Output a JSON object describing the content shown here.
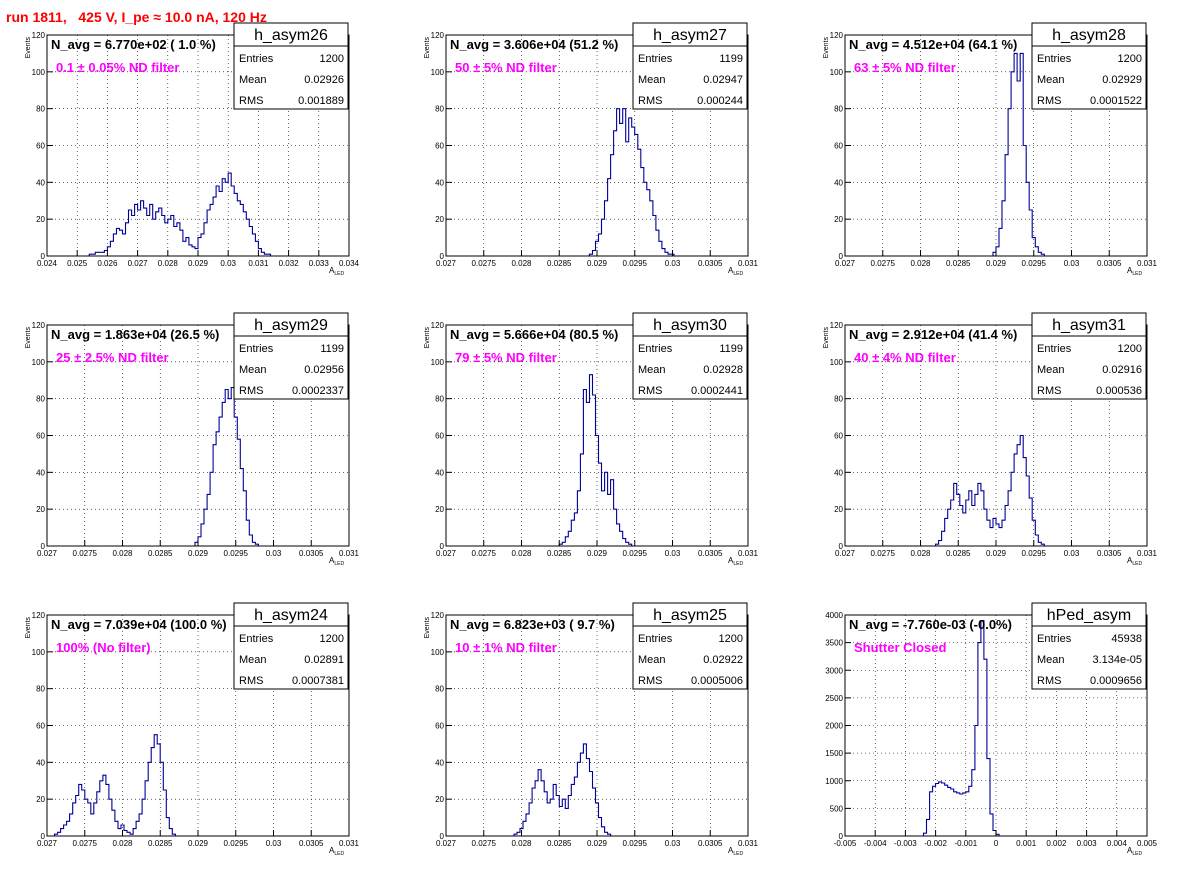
{
  "canvas_title": "run 1811,   425 V, I_pe ≈ 10.0 nA, 120 Hz",
  "chart_data": [
    {
      "type": "histogram",
      "name": "h_asym26",
      "navg": "N_avg = 6.770e+02 ( 1.0 %)",
      "filter": "0.1 ± 0.05% ND filter",
      "entries": "1200",
      "mean": "0.02926",
      "rms": "0.001889",
      "xlabel": "A",
      "xlabel_sub": "LED",
      "ylabel": "Events",
      "xlim": [
        0.024,
        0.034
      ],
      "ylim": [
        0,
        120
      ],
      "xticks": [
        0.024,
        0.025,
        0.026,
        0.027,
        0.028,
        0.029,
        0.03,
        0.031,
        0.032,
        0.033,
        0.034
      ],
      "xtick_labels": [
        "0.024",
        "0.025",
        "0.026",
        "0.027",
        "0.028",
        "0.029",
        "0.03",
        "0.031",
        "0.032",
        "0.033",
        "0.034"
      ],
      "yticks": [
        0,
        20,
        40,
        60,
        80,
        100,
        120
      ],
      "ytick_labels": [
        "0",
        "20",
        "40",
        "60",
        "80",
        "100",
        "120"
      ],
      "bin_start": 0.0254,
      "bin_width": 0.0001,
      "counts": [
        1,
        1,
        2,
        2,
        2,
        3,
        5,
        8,
        12,
        15,
        14,
        12,
        18,
        25,
        22,
        28,
        25,
        30,
        26,
        22,
        28,
        20,
        24,
        26,
        22,
        18,
        20,
        22,
        16,
        18,
        14,
        8,
        10,
        6,
        5,
        4,
        10,
        12,
        18,
        25,
        28,
        32,
        38,
        35,
        42,
        40,
        45,
        38,
        34,
        30,
        28,
        24,
        20,
        16,
        12,
        8,
        4,
        2,
        1,
        1
      ]
    },
    {
      "type": "histogram",
      "name": "h_asym27",
      "navg": "N_avg = 3.606e+04 (51.2 %)",
      "filter": "50 ± 5% ND filter",
      "entries": "1199",
      "mean": "0.02947",
      "rms": "0.000244",
      "xlabel": "A",
      "xlabel_sub": "LED",
      "ylabel": "Events",
      "xlim": [
        0.027,
        0.031
      ],
      "ylim": [
        0,
        120
      ],
      "xticks": [
        0.027,
        0.0275,
        0.028,
        0.0285,
        0.029,
        0.0295,
        0.03,
        0.0305,
        0.031
      ],
      "xtick_labels": [
        "0.027",
        "0.0275",
        "0.028",
        "0.0285",
        "0.029",
        "0.0295",
        "0.03",
        "0.0305",
        "0.031"
      ],
      "yticks": [
        0,
        20,
        40,
        60,
        80,
        100,
        120
      ],
      "ytick_labels": [
        "0",
        "20",
        "40",
        "60",
        "80",
        "100",
        "120"
      ],
      "bin_start": 0.0289,
      "bin_width": 4e-05,
      "counts": [
        1,
        3,
        8,
        12,
        20,
        30,
        42,
        55,
        68,
        80,
        72,
        80,
        62,
        75,
        70,
        66,
        58,
        48,
        40,
        36,
        30,
        22,
        14,
        8,
        4,
        2,
        1,
        1
      ]
    },
    {
      "type": "histogram",
      "name": "h_asym28",
      "navg": "N_avg = 4.512e+04 (64.1 %)",
      "filter": "63 ± 5% ND filter",
      "entries": "1200",
      "mean": "0.02929",
      "rms": "0.0001522",
      "xlabel": "A",
      "xlabel_sub": "LED",
      "ylabel": "Events",
      "xlim": [
        0.027,
        0.031
      ],
      "ylim": [
        0,
        120
      ],
      "xticks": [
        0.027,
        0.0275,
        0.028,
        0.0285,
        0.029,
        0.0295,
        0.03,
        0.0305,
        0.031
      ],
      "xtick_labels": [
        "0.027",
        "0.0275",
        "0.028",
        "0.0285",
        "0.029",
        "0.0295",
        "0.03",
        "0.0305",
        "0.031"
      ],
      "yticks": [
        0,
        20,
        40,
        60,
        80,
        100,
        120
      ],
      "ytick_labels": [
        "0",
        "20",
        "40",
        "60",
        "80",
        "100",
        "120"
      ],
      "bin_start": 0.02896,
      "bin_width": 4e-05,
      "counts": [
        2,
        5,
        15,
        30,
        55,
        80,
        100,
        110,
        95,
        110,
        60,
        40,
        25,
        10,
        5,
        2,
        1
      ]
    },
    {
      "type": "histogram",
      "name": "h_asym29",
      "navg": "N_avg = 1.863e+04 (26.5 %)",
      "filter": "25 ± 2.5% ND filter",
      "entries": "1199",
      "mean": "0.02956",
      "rms": "0.0002337",
      "xlabel": "A",
      "xlabel_sub": "LED",
      "ylabel": "Events",
      "xlim": [
        0.027,
        0.031
      ],
      "ylim": [
        0,
        120
      ],
      "xticks": [
        0.027,
        0.0275,
        0.028,
        0.0285,
        0.029,
        0.0295,
        0.03,
        0.0305,
        0.031
      ],
      "xtick_labels": [
        "0.027",
        "0.0275",
        "0.028",
        "0.0285",
        "0.029",
        "0.0295",
        "0.03",
        "0.0305",
        "0.031"
      ],
      "yticks": [
        0,
        20,
        40,
        60,
        80,
        100,
        120
      ],
      "ytick_labels": [
        "0",
        "20",
        "40",
        "60",
        "80",
        "100",
        "120"
      ],
      "bin_start": 0.02896,
      "bin_width": 4e-05,
      "counts": [
        2,
        5,
        12,
        20,
        28,
        40,
        55,
        62,
        70,
        78,
        85,
        80,
        86,
        70,
        58,
        42,
        30,
        14,
        6,
        2,
        1
      ]
    },
    {
      "type": "histogram",
      "name": "h_asym30",
      "navg": "N_avg = 5.666e+04 (80.5 %)",
      "filter": "79 ± 5% ND filter",
      "entries": "1199",
      "mean": "0.02928",
      "rms": "0.0002441",
      "xlabel": "A",
      "xlabel_sub": "LED",
      "ylabel": "Events",
      "xlim": [
        0.027,
        0.031
      ],
      "ylim": [
        0,
        120
      ],
      "xticks": [
        0.027,
        0.0275,
        0.028,
        0.0285,
        0.029,
        0.0295,
        0.03,
        0.0305,
        0.031
      ],
      "xtick_labels": [
        "0.027",
        "0.0275",
        "0.028",
        "0.0285",
        "0.029",
        "0.0295",
        "0.03",
        "0.0305",
        "0.031"
      ],
      "yticks": [
        0,
        20,
        40,
        60,
        80,
        100,
        120
      ],
      "ytick_labels": [
        "0",
        "20",
        "40",
        "60",
        "80",
        "100",
        "120"
      ],
      "bin_start": 0.0285,
      "bin_width": 4e-05,
      "counts": [
        1,
        2,
        5,
        8,
        14,
        18,
        30,
        50,
        85,
        78,
        93,
        82,
        60,
        45,
        30,
        40,
        28,
        36,
        20,
        12,
        8,
        4,
        2,
        1
      ]
    },
    {
      "type": "histogram",
      "name": "h_asym31",
      "navg": "N_avg = 2.912e+04 (41.4 %)",
      "filter": "40 ± 4% ND filter",
      "entries": "1200",
      "mean": "0.02916",
      "rms": "0.000536",
      "xlabel": "A",
      "xlabel_sub": "LED",
      "ylabel": "Events",
      "xlim": [
        0.027,
        0.031
      ],
      "ylim": [
        0,
        120
      ],
      "xticks": [
        0.027,
        0.0275,
        0.028,
        0.0285,
        0.029,
        0.0295,
        0.03,
        0.0305,
        0.031
      ],
      "xtick_labels": [
        "0.027",
        "0.0275",
        "0.028",
        "0.0285",
        "0.029",
        "0.0295",
        "0.03",
        "0.0305",
        "0.031"
      ],
      "yticks": [
        0,
        20,
        40,
        60,
        80,
        100,
        120
      ],
      "ytick_labels": [
        "0",
        "20",
        "40",
        "60",
        "80",
        "100",
        "120"
      ],
      "bin_start": 0.0282,
      "bin_width": 4e-05,
      "counts": [
        1,
        3,
        8,
        15,
        20,
        25,
        34,
        28,
        22,
        18,
        25,
        30,
        22,
        28,
        34,
        30,
        20,
        14,
        10,
        15,
        12,
        10,
        14,
        22,
        30,
        40,
        50,
        55,
        60,
        48,
        38,
        26,
        14,
        6,
        2,
        1
      ]
    },
    {
      "type": "histogram",
      "name": "h_asym24",
      "navg": "N_avg = 7.039e+04 (100.0 %)",
      "filter": "100% (No filter)",
      "entries": "1200",
      "mean": "0.02891",
      "rms": "0.0007381",
      "xlabel": "A",
      "xlabel_sub": "LED",
      "ylabel": "Events",
      "xlim": [
        0.027,
        0.031
      ],
      "ylim": [
        0,
        120
      ],
      "xticks": [
        0.027,
        0.0275,
        0.028,
        0.0285,
        0.029,
        0.0295,
        0.03,
        0.0305,
        0.031
      ],
      "xtick_labels": [
        "0.027",
        "0.0275",
        "0.028",
        "0.0285",
        "0.029",
        "0.0295",
        "0.03",
        "0.0305",
        "0.031"
      ],
      "yticks": [
        0,
        20,
        40,
        60,
        80,
        100,
        120
      ],
      "ytick_labels": [
        "0",
        "20",
        "40",
        "60",
        "80",
        "100",
        "120"
      ],
      "bin_start": 0.0271,
      "bin_width": 4e-05,
      "counts": [
        1,
        2,
        4,
        6,
        8,
        12,
        18,
        22,
        28,
        25,
        20,
        18,
        12,
        18,
        24,
        30,
        33,
        28,
        20,
        14,
        8,
        4,
        6,
        3,
        2,
        1,
        4,
        8,
        12,
        20,
        30,
        40,
        48,
        55,
        50,
        40,
        25,
        10,
        4,
        1
      ]
    },
    {
      "type": "histogram",
      "name": "h_asym25",
      "navg": "N_avg = 6.823e+03 ( 9.7 %)",
      "filter": "10 ± 1% ND filter",
      "entries": "1200",
      "mean": "0.02922",
      "rms": "0.0005006",
      "xlabel": "A",
      "xlabel_sub": "LED",
      "ylabel": "Events",
      "xlim": [
        0.027,
        0.031
      ],
      "ylim": [
        0,
        120
      ],
      "xticks": [
        0.027,
        0.0275,
        0.028,
        0.0285,
        0.029,
        0.0295,
        0.03,
        0.0305,
        0.031
      ],
      "xtick_labels": [
        "0.027",
        "0.0275",
        "0.028",
        "0.0285",
        "0.029",
        "0.0295",
        "0.03",
        "0.0305",
        "0.031"
      ],
      "yticks": [
        0,
        20,
        40,
        60,
        80,
        100,
        120
      ],
      "ytick_labels": [
        "0",
        "20",
        "40",
        "60",
        "80",
        "100",
        "120"
      ],
      "bin_start": 0.0279,
      "bin_width": 4e-05,
      "counts": [
        1,
        2,
        4,
        8,
        12,
        18,
        26,
        30,
        36,
        30,
        24,
        18,
        20,
        28,
        22,
        16,
        20,
        15,
        22,
        28,
        32,
        40,
        45,
        50,
        42,
        35,
        26,
        18,
        10,
        5,
        2,
        1
      ]
    },
    {
      "type": "histogram",
      "name": "hPed_asym",
      "navg": "N_avg = -7.760e-03 (-0.0%)",
      "filter": "Shutter Closed",
      "entries": "45938",
      "mean": "3.134e-05",
      "rms": "0.0009656",
      "xlabel": "A",
      "xlabel_sub": "LED",
      "ylabel": "",
      "xlim": [
        -0.005,
        0.005
      ],
      "ylim": [
        0,
        4000
      ],
      "xticks": [
        -0.005,
        -0.004,
        -0.003,
        -0.002,
        -0.001,
        0,
        0.001,
        0.002,
        0.003,
        0.004,
        0.005
      ],
      "xtick_labels": [
        "-0.005",
        "-0.004",
        "-0.003",
        "-0.002",
        "-0.001",
        "0",
        "0.001",
        "0.002",
        "0.003",
        "0.004",
        "0.005"
      ],
      "yticks": [
        0,
        500,
        1000,
        1500,
        2000,
        2500,
        3000,
        3500,
        4000
      ],
      "ytick_labels": [
        "0",
        "500",
        "1000",
        "1500",
        "2000",
        "2500",
        "3000",
        "3500",
        "4000"
      ],
      "bin_start": -0.0024,
      "bin_width": 0.0001,
      "counts": [
        50,
        300,
        800,
        900,
        950,
        980,
        960,
        920,
        880,
        850,
        800,
        780,
        760,
        780,
        800,
        900,
        1200,
        2000,
        3500,
        3900,
        3200,
        1400,
        400,
        100,
        30
      ]
    }
  ]
}
